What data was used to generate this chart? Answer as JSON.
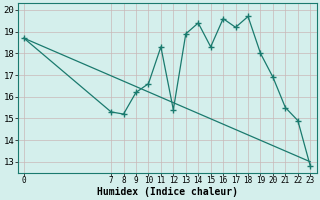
{
  "x_data": [
    0,
    7,
    8,
    9,
    10,
    11,
    12,
    13,
    14,
    15,
    16,
    17,
    18,
    19,
    20,
    21,
    22,
    23
  ],
  "y_data": [
    18.7,
    15.3,
    15.2,
    16.2,
    16.6,
    18.3,
    15.4,
    18.9,
    19.4,
    18.3,
    19.6,
    19.2,
    19.7,
    18.0,
    16.9,
    15.5,
    14.9,
    12.8
  ],
  "trend_x": [
    0,
    23
  ],
  "trend_y": [
    18.7,
    13.0
  ],
  "line_color": "#1a7a6e",
  "bg_color": "#d4efec",
  "grid_color_major": "#c9b8b8",
  "grid_color_minor": "#c9b8b8",
  "xlabel": "Humidex (Indice chaleur)",
  "xlim": [
    -0.5,
    23.5
  ],
  "ylim": [
    12.5,
    20.3
  ],
  "yticks": [
    13,
    14,
    15,
    16,
    17,
    18,
    19,
    20
  ],
  "xticks": [
    0,
    7,
    8,
    9,
    10,
    11,
    12,
    13,
    14,
    15,
    16,
    17,
    18,
    19,
    20,
    21,
    22,
    23
  ],
  "marker": "+"
}
